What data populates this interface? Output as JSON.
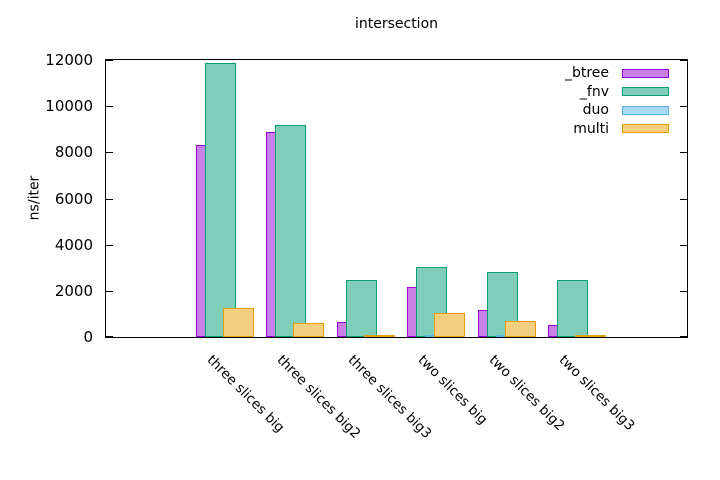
{
  "chart_data": {
    "type": "bar",
    "title": "intersection",
    "ylabel": "ns/iter",
    "xlabel": "",
    "categories": [
      "three slices big",
      "three slices big2",
      "three slices big3",
      "two slices big",
      "two slices big2",
      "two slices big3"
    ],
    "series": [
      {
        "name": "_btree",
        "border_color": "#9400d3",
        "fill_color": "#c980e9",
        "values": [
          8300,
          8900,
          640,
          2160,
          1170,
          520
        ]
      },
      {
        "name": "_fnv",
        "border_color": "#009e73",
        "fill_color": "#80ceb9",
        "values": [
          11870,
          9200,
          2450,
          3020,
          2810,
          2480
        ]
      },
      {
        "name": "duo",
        "border_color": "#56b4e9",
        "fill_color": "#abd9f4",
        "values": [
          0,
          0,
          0,
          85,
          60,
          0
        ]
      },
      {
        "name": "multi",
        "border_color": "#e69f00",
        "fill_color": "#f2cf80",
        "values": [
          1250,
          600,
          60,
          1060,
          680,
          80
        ]
      }
    ],
    "ylim": [
      0,
      12000
    ],
    "yticks": [
      0,
      2000,
      4000,
      6000,
      8000,
      10000,
      12000
    ],
    "grid": false,
    "legend_position": "top-right-inside",
    "bar_style": "overlapping-cluster",
    "x_tick_label_rotation_deg": 45,
    "frame_color": "#000000",
    "background_color": "#ffffff"
  }
}
